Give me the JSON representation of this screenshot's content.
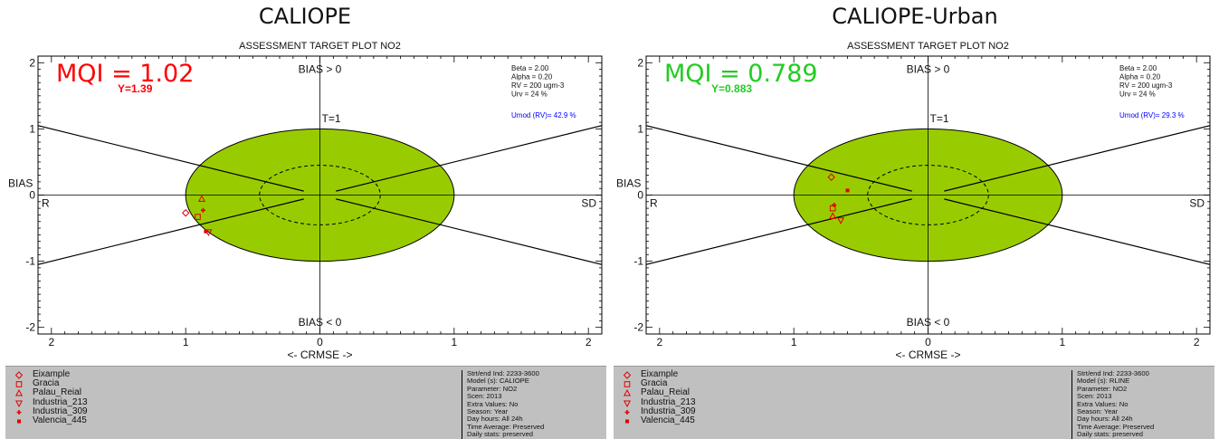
{
  "panels": [
    {
      "id": "left",
      "heading": "CALIOPE",
      "chart_data": {
        "type": "scatter",
        "title": "ASSESSMENT TARGET PLOT   NO2",
        "xlabel": "<- CRMSE ->",
        "ylabel": "BIAS",
        "xlim": [
          -2.1,
          2.1
        ],
        "ylim": [
          -2.1,
          2.1
        ],
        "x_ticks": [
          {
            "value": -2,
            "label": "2"
          },
          {
            "value": -1,
            "label": "1"
          },
          {
            "value": 0,
            "label": "0"
          },
          {
            "value": 1,
            "label": "1"
          },
          {
            "value": 2,
            "label": "2"
          }
        ],
        "y_ticks": [
          {
            "value": 2,
            "label": "2"
          },
          {
            "value": 1,
            "label": "1"
          },
          {
            "value": 0,
            "label": "0"
          },
          {
            "value": -1,
            "label": "-1"
          },
          {
            "value": -2,
            "label": "-2"
          }
        ],
        "grid": false,
        "labels": {
          "bias_pos": "BIAS > 0",
          "bias_neg": "BIAS < 0",
          "left": "R",
          "right": "SD",
          "target": "T=1"
        },
        "mqi": {
          "text": "MQI  =  1.02",
          "y_text": "Y=1.39",
          "color": "#ff0000"
        },
        "params": [
          "Beta = 2.00",
          "Alpha = 0.20",
          "RV = 200 ugm-3",
          "Urv = 24 %"
        ],
        "umod": "Umod (RV)= 42.9 %",
        "marker_color": "#e00000",
        "series": [
          {
            "name": "Eixample",
            "marker": "diamond",
            "x": -1.0,
            "y": -0.27
          },
          {
            "name": "Gracia",
            "marker": "square",
            "x": -0.91,
            "y": -0.33
          },
          {
            "name": "Palau_Reial",
            "marker": "triangle-up",
            "x": -0.88,
            "y": -0.06
          },
          {
            "name": "Industria_213",
            "marker": "triangle-down",
            "x": -0.83,
            "y": -0.56
          },
          {
            "name": "Industria_309",
            "marker": "plus",
            "x": -0.87,
            "y": -0.23
          },
          {
            "name": "Valencia_445",
            "marker": "dot",
            "x": -0.85,
            "y": -0.55
          }
        ]
      },
      "info_lines": [
        "Strt/end Ind: 2233-3600",
        "Model (s): CALIOPE",
        "Parameter: NO2",
        "Scen: 2013",
        "Extra Values: No",
        "Season: Year",
        "Day hours: All 24h",
        "Time Average: Preserved",
        "Daily stats: preserved"
      ]
    },
    {
      "id": "right",
      "heading": "CALIOPE-Urban",
      "chart_data": {
        "type": "scatter",
        "title": "ASSESSMENT TARGET PLOT   NO2",
        "xlabel": "<- CRMSE ->",
        "ylabel": "BIAS",
        "xlim": [
          -2.1,
          2.1
        ],
        "ylim": [
          -2.1,
          2.1
        ],
        "x_ticks": [
          {
            "value": -2,
            "label": "2"
          },
          {
            "value": -1,
            "label": "1"
          },
          {
            "value": 0,
            "label": "0"
          },
          {
            "value": 1,
            "label": "1"
          },
          {
            "value": 2,
            "label": "2"
          }
        ],
        "y_ticks": [
          {
            "value": 2,
            "label": "2"
          },
          {
            "value": 1,
            "label": "1"
          },
          {
            "value": 0,
            "label": "0"
          },
          {
            "value": -1,
            "label": "-1"
          },
          {
            "value": -2,
            "label": "-2"
          }
        ],
        "grid": false,
        "labels": {
          "bias_pos": "BIAS > 0",
          "bias_neg": "BIAS < 0",
          "left": "R",
          "right": "SD",
          "target": "T=1"
        },
        "mqi": {
          "text": "MQI  =  0.789",
          "y_text": "Y=0.883",
          "color": "#22cc22"
        },
        "params": [
          "Beta = 2.00",
          "Alpha = 0.20",
          "RV = 200 ugm-3",
          "Urv = 24 %"
        ],
        "umod": "Umod (RV)= 29.3 %",
        "marker_color": "#e00000",
        "series": [
          {
            "name": "Eixample",
            "marker": "diamond",
            "x": -0.72,
            "y": 0.27
          },
          {
            "name": "Gracia",
            "marker": "square",
            "x": -0.71,
            "y": -0.2
          },
          {
            "name": "Palau_Reial",
            "marker": "triangle-up",
            "x": -0.71,
            "y": -0.32
          },
          {
            "name": "Industria_213",
            "marker": "triangle-down",
            "x": -0.65,
            "y": -0.38
          },
          {
            "name": "Industria_309",
            "marker": "plus",
            "x": -0.7,
            "y": -0.15
          },
          {
            "name": "Valencia_445",
            "marker": "dot",
            "x": -0.6,
            "y": 0.07
          }
        ]
      },
      "info_lines": [
        "Strt/end Ind: 2233-3600",
        "Model (s): RLINE",
        "Parameter: NO2",
        "Scen: 2013",
        "Extra Values: No",
        "Season: Year",
        "Day hours: All 24h",
        "Time Average: Preserved",
        "Daily stats: preserved"
      ]
    }
  ],
  "colors": {
    "target_fill": "#99cc00",
    "axis": "#000000",
    "umod_text": "#0000ff",
    "legend_bg": "#c0c0c0"
  }
}
